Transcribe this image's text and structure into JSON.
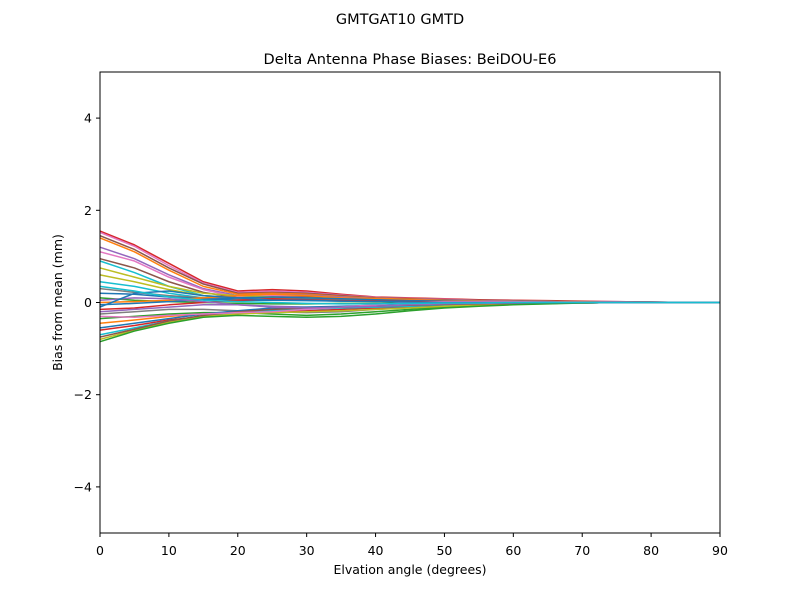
{
  "suptitle": "GMTGAT10        GMTD",
  "chart_data": {
    "type": "line",
    "title": "Delta Antenna Phase Biases: BeiDOU-E6",
    "xlabel": "Elvation angle (degrees)",
    "ylabel": "Bias from mean (mm)",
    "xlim": [
      0,
      90
    ],
    "ylim": [
      -5,
      5
    ],
    "xticks": [
      0,
      10,
      20,
      30,
      40,
      50,
      60,
      70,
      80,
      90
    ],
    "yticks": [
      -4,
      -2,
      0,
      2,
      4
    ],
    "ytick_labels": [
      "−4",
      "−2",
      "0",
      "2",
      "4"
    ],
    "grid": false,
    "x": [
      0,
      5,
      10,
      15,
      20,
      25,
      30,
      35,
      40,
      45,
      50,
      55,
      60,
      65,
      70,
      75,
      80,
      85,
      90
    ],
    "series": [
      {
        "color": "#d62728",
        "values": [
          1.55,
          1.25,
          0.85,
          0.45,
          0.25,
          0.28,
          0.25,
          0.18,
          0.12,
          0.1,
          0.08,
          0.06,
          0.05,
          0.04,
          0.03,
          0.02,
          0.01,
          0.0,
          0.0
        ]
      },
      {
        "color": "#e377c2",
        "values": [
          1.52,
          1.22,
          0.8,
          0.42,
          0.22,
          0.25,
          0.22,
          0.16,
          0.11,
          0.09,
          0.07,
          0.05,
          0.04,
          0.03,
          0.02,
          0.02,
          0.01,
          0.0,
          0.0
        ]
      },
      {
        "color": "#8c564b",
        "values": [
          1.45,
          1.15,
          0.75,
          0.4,
          0.2,
          0.22,
          0.2,
          0.15,
          0.1,
          0.08,
          0.06,
          0.05,
          0.04,
          0.03,
          0.02,
          0.01,
          0.01,
          0.0,
          0.0
        ]
      },
      {
        "color": "#ff7f0e",
        "values": [
          1.4,
          1.1,
          0.7,
          0.35,
          0.18,
          0.2,
          0.18,
          0.13,
          0.09,
          0.07,
          0.05,
          0.04,
          0.03,
          0.02,
          0.02,
          0.01,
          0.0,
          0.0,
          0.0
        ]
      },
      {
        "color": "#9467bd",
        "values": [
          1.2,
          0.95,
          0.6,
          0.3,
          0.15,
          0.18,
          0.16,
          0.12,
          0.08,
          0.06,
          0.05,
          0.04,
          0.03,
          0.02,
          0.01,
          0.01,
          0.0,
          0.0,
          0.0
        ]
      },
      {
        "color": "#e377c2",
        "values": [
          1.1,
          0.9,
          0.55,
          0.28,
          0.12,
          0.15,
          0.14,
          0.1,
          0.07,
          0.05,
          0.04,
          0.03,
          0.02,
          0.02,
          0.01,
          0.01,
          0.0,
          0.0,
          0.0
        ]
      },
      {
        "color": "#8c564b",
        "values": [
          0.95,
          0.75,
          0.45,
          0.22,
          0.1,
          0.12,
          0.12,
          0.09,
          0.06,
          0.05,
          0.04,
          0.03,
          0.02,
          0.02,
          0.01,
          0.0,
          0.0,
          0.0,
          0.0
        ]
      },
      {
        "color": "#17becf",
        "values": [
          0.9,
          0.65,
          0.35,
          0.15,
          0.05,
          0.08,
          0.08,
          0.06,
          0.05,
          0.04,
          0.03,
          0.02,
          0.02,
          0.01,
          0.01,
          0.0,
          0.0,
          0.0,
          0.0
        ]
      },
      {
        "color": "#bcbd22",
        "values": [
          0.75,
          0.55,
          0.35,
          0.2,
          0.15,
          0.12,
          0.1,
          0.08,
          0.06,
          0.05,
          0.04,
          0.03,
          0.02,
          0.02,
          0.01,
          0.0,
          0.0,
          0.0,
          0.0
        ]
      },
      {
        "color": "#bcbd22",
        "values": [
          0.6,
          0.45,
          0.28,
          0.15,
          0.1,
          0.1,
          0.08,
          0.06,
          0.05,
          0.04,
          0.03,
          0.02,
          0.02,
          0.01,
          0.01,
          0.0,
          0.0,
          0.0,
          0.0
        ]
      },
      {
        "color": "#17becf",
        "values": [
          0.45,
          0.35,
          0.2,
          0.1,
          0.05,
          0.06,
          0.05,
          0.04,
          0.03,
          0.03,
          0.02,
          0.02,
          0.01,
          0.01,
          0.0,
          0.0,
          0.0,
          0.0,
          0.0
        ]
      },
      {
        "color": "#7f7f7f",
        "values": [
          0.3,
          0.22,
          0.15,
          0.1,
          0.08,
          0.08,
          0.07,
          0.05,
          0.04,
          0.03,
          0.02,
          0.02,
          0.01,
          0.01,
          0.0,
          0.0,
          0.0,
          0.0,
          0.0
        ]
      },
      {
        "color": "#1f77b4",
        "values": [
          0.2,
          0.18,
          0.12,
          0.08,
          0.05,
          0.05,
          0.04,
          0.03,
          0.03,
          0.02,
          0.02,
          0.01,
          0.01,
          0.0,
          0.0,
          0.0,
          0.0,
          0.0,
          0.0
        ]
      },
      {
        "color": "#2ca02c",
        "values": [
          0.1,
          0.05,
          0.02,
          0.0,
          -0.02,
          -0.03,
          -0.03,
          -0.02,
          -0.02,
          -0.01,
          -0.01,
          -0.01,
          0.0,
          0.0,
          0.0,
          0.0,
          0.0,
          0.0,
          0.0
        ]
      },
      {
        "color": "#ff7f0e",
        "values": [
          0.0,
          0.02,
          0.05,
          0.1,
          0.15,
          0.18,
          0.15,
          0.1,
          0.08,
          0.06,
          0.04,
          0.03,
          0.02,
          0.01,
          0.01,
          0.0,
          0.0,
          0.0,
          0.0
        ]
      },
      {
        "color": "#1f77b4",
        "values": [
          -0.05,
          -0.02,
          0.02,
          0.06,
          0.1,
          0.12,
          0.1,
          0.08,
          0.06,
          0.04,
          0.03,
          0.02,
          0.02,
          0.01,
          0.0,
          0.0,
          0.0,
          0.0,
          0.0
        ]
      },
      {
        "color": "#d62728",
        "values": [
          -0.15,
          -0.12,
          -0.05,
          0.0,
          0.05,
          0.08,
          0.06,
          0.04,
          0.03,
          0.02,
          0.02,
          0.01,
          0.01,
          0.0,
          0.0,
          0.0,
          0.0,
          0.0,
          0.0
        ]
      },
      {
        "color": "#9467bd",
        "values": [
          -0.2,
          -0.15,
          -0.1,
          -0.05,
          -0.05,
          -0.08,
          -0.1,
          -0.1,
          -0.08,
          -0.06,
          -0.04,
          -0.03,
          -0.02,
          -0.01,
          -0.01,
          0.0,
          0.0,
          0.0,
          0.0
        ]
      },
      {
        "color": "#7f7f7f",
        "values": [
          -0.25,
          -0.2,
          -0.15,
          -0.15,
          -0.18,
          -0.2,
          -0.22,
          -0.2,
          -0.15,
          -0.1,
          -0.07,
          -0.05,
          -0.03,
          -0.02,
          -0.01,
          0.0,
          0.0,
          0.0,
          0.0
        ]
      },
      {
        "color": "#2ca02c",
        "values": [
          -0.35,
          -0.3,
          -0.25,
          -0.22,
          -0.22,
          -0.25,
          -0.28,
          -0.25,
          -0.2,
          -0.15,
          -0.1,
          -0.07,
          -0.04,
          -0.02,
          -0.01,
          0.0,
          0.0,
          0.0,
          0.0
        ]
      },
      {
        "color": "#ff7f0e",
        "values": [
          -0.45,
          -0.38,
          -0.3,
          -0.25,
          -0.2,
          -0.15,
          -0.12,
          -0.1,
          -0.08,
          -0.06,
          -0.04,
          -0.03,
          -0.02,
          -0.01,
          0.0,
          0.0,
          0.0,
          0.0,
          0.0
        ]
      },
      {
        "color": "#1f77b4",
        "values": [
          -0.55,
          -0.45,
          -0.35,
          -0.25,
          -0.18,
          -0.12,
          -0.1,
          -0.08,
          -0.06,
          -0.05,
          -0.03,
          -0.02,
          -0.02,
          -0.01,
          0.0,
          0.0,
          0.0,
          0.0,
          0.0
        ]
      },
      {
        "color": "#d62728",
        "values": [
          -0.6,
          -0.5,
          -0.38,
          -0.3,
          -0.25,
          -0.2,
          -0.18,
          -0.15,
          -0.12,
          -0.08,
          -0.06,
          -0.04,
          -0.03,
          -0.02,
          -0.01,
          0.0,
          0.0,
          0.0,
          0.0
        ]
      },
      {
        "color": "#17becf",
        "values": [
          -0.7,
          -0.55,
          -0.4,
          -0.3,
          -0.22,
          -0.18,
          -0.15,
          -0.12,
          -0.1,
          -0.08,
          -0.05,
          -0.04,
          -0.03,
          -0.02,
          -0.01,
          0.0,
          0.0,
          0.0,
          0.0
        ]
      },
      {
        "color": "#bcbd22",
        "values": [
          -0.8,
          -0.6,
          -0.42,
          -0.3,
          -0.25,
          -0.22,
          -0.2,
          -0.18,
          -0.15,
          -0.12,
          -0.08,
          -0.05,
          -0.03,
          -0.02,
          -0.01,
          0.0,
          0.0,
          0.0,
          0.0
        ]
      },
      {
        "color": "#8c564b",
        "values": [
          -0.75,
          -0.58,
          -0.4,
          -0.28,
          -0.2,
          -0.15,
          -0.12,
          -0.1,
          -0.08,
          -0.06,
          -0.04,
          -0.03,
          -0.02,
          -0.01,
          0.0,
          0.0,
          0.0,
          0.0,
          0.0
        ]
      },
      {
        "color": "#2ca02c",
        "values": [
          -0.85,
          -0.62,
          -0.45,
          -0.32,
          -0.28,
          -0.3,
          -0.32,
          -0.3,
          -0.25,
          -0.18,
          -0.12,
          -0.08,
          -0.05,
          -0.03,
          -0.01,
          0.0,
          0.0,
          0.0,
          0.0
        ]
      },
      {
        "color": "#e377c2",
        "values": [
          -0.3,
          -0.32,
          -0.28,
          -0.25,
          -0.22,
          -0.2,
          -0.15,
          -0.1,
          -0.05,
          0.0,
          0.02,
          0.02,
          0.02,
          0.01,
          0.01,
          0.0,
          0.0,
          0.0,
          0.0
        ]
      },
      {
        "color": "#9467bd",
        "values": [
          0.05,
          0.1,
          0.08,
          0.02,
          -0.05,
          -0.1,
          -0.12,
          -0.1,
          -0.08,
          -0.05,
          -0.03,
          -0.02,
          -0.01,
          0.0,
          0.0,
          0.0,
          0.0,
          0.0,
          0.0
        ]
      },
      {
        "color": "#1f77b4",
        "values": [
          -0.1,
          0.2,
          0.25,
          0.15,
          0.1,
          0.05,
          0.05,
          0.03,
          0.02,
          0.01,
          0.0,
          0.0,
          0.0,
          0.0,
          0.0,
          0.0,
          0.0,
          0.0,
          0.0
        ]
      },
      {
        "color": "#17becf",
        "values": [
          0.35,
          0.25,
          0.12,
          0.05,
          0.02,
          0.0,
          -0.02,
          -0.03,
          -0.03,
          -0.02,
          -0.01,
          -0.01,
          0.0,
          0.0,
          0.0,
          0.0,
          0.0,
          0.0,
          0.0
        ]
      }
    ]
  }
}
